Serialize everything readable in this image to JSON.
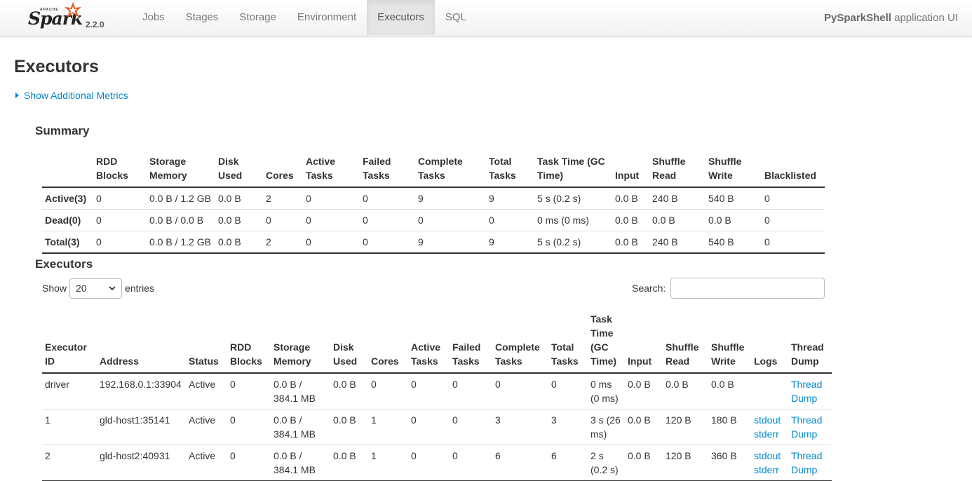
{
  "navbar": {
    "brand_top": "APACHE",
    "brand_name": "Spark",
    "version": "2.2.0",
    "items": [
      {
        "label": "Jobs",
        "active": false
      },
      {
        "label": "Stages",
        "active": false
      },
      {
        "label": "Storage",
        "active": false
      },
      {
        "label": "Environment",
        "active": false
      },
      {
        "label": "Executors",
        "active": true
      },
      {
        "label": "SQL",
        "active": false
      }
    ],
    "app_name": "PySparkShell",
    "app_suffix": "application UI"
  },
  "page": {
    "title": "Executors",
    "show_metrics": "Show Additional Metrics"
  },
  "summary": {
    "title": "Summary",
    "headers": [
      "",
      "RDD Blocks",
      "Storage Memory",
      "Disk Used",
      "Cores",
      "Active Tasks",
      "Failed Tasks",
      "Complete Tasks",
      "Total Tasks",
      "Task Time (GC Time)",
      "Input",
      "Shuffle Read",
      "Shuffle Write",
      "Blacklisted"
    ],
    "rows": [
      [
        "Active(3)",
        "0",
        "0.0 B / 1.2 GB",
        "0.0 B",
        "2",
        "0",
        "0",
        "9",
        "9",
        "5 s (0.2 s)",
        "0.0 B",
        "240 B",
        "540 B",
        "0"
      ],
      [
        "Dead(0)",
        "0",
        "0.0 B / 0.0 B",
        "0.0 B",
        "0",
        "0",
        "0",
        "0",
        "0",
        "0 ms (0 ms)",
        "0.0 B",
        "0.0 B",
        "0.0 B",
        "0"
      ],
      [
        "Total(3)",
        "0",
        "0.0 B / 1.2 GB",
        "0.0 B",
        "2",
        "0",
        "0",
        "9",
        "9",
        "5 s (0.2 s)",
        "0.0 B",
        "240 B",
        "540 B",
        "0"
      ]
    ]
  },
  "executors": {
    "title": "Executors",
    "show_label": "Show",
    "page_size": "20",
    "entries_label": "entries",
    "search_label": "Search:",
    "search_value": "",
    "headers": [
      "Executor ID",
      "Address",
      "Status",
      "RDD Blocks",
      "Storage Memory",
      "Disk Used",
      "Cores",
      "Active Tasks",
      "Failed Tasks",
      "Complete Tasks",
      "Total Tasks",
      "Task Time (GC Time)",
      "Input",
      "Shuffle Read",
      "Shuffle Write",
      "Logs",
      "Thread Dump"
    ],
    "rows": [
      {
        "id": "driver",
        "address": "192.168.0.1:33904",
        "status": "Active",
        "rdd": "0",
        "storage": "0.0 B / 384.1 MB",
        "disk": "0.0 B",
        "cores": "0",
        "active": "0",
        "failed": "0",
        "complete": "0",
        "total": "0",
        "task_time": "0 ms (0 ms)",
        "input": "0.0 B",
        "shuffle_read": "0.0 B",
        "shuffle_write": "0.0 B",
        "stdout": "",
        "stderr": "",
        "thread_dump": "Thread Dump"
      },
      {
        "id": "1",
        "address": "gld-host1:35141",
        "status": "Active",
        "rdd": "0",
        "storage": "0.0 B / 384.1 MB",
        "disk": "0.0 B",
        "cores": "1",
        "active": "0",
        "failed": "0",
        "complete": "3",
        "total": "3",
        "task_time": "3 s (26 ms)",
        "input": "0.0 B",
        "shuffle_read": "120 B",
        "shuffle_write": "180 B",
        "stdout": "stdout",
        "stderr": "stderr",
        "thread_dump": "Thread Dump"
      },
      {
        "id": "2",
        "address": "gld-host2:40931",
        "status": "Active",
        "rdd": "0",
        "storage": "0.0 B / 384.1 MB",
        "disk": "0.0 B",
        "cores": "1",
        "active": "0",
        "failed": "0",
        "complete": "6",
        "total": "6",
        "task_time": "2 s (0.2 s)",
        "input": "0.0 B",
        "shuffle_read": "120 B",
        "shuffle_write": "360 B",
        "stdout": "stdout",
        "stderr": "stderr",
        "thread_dump": "Thread Dump"
      }
    ]
  }
}
